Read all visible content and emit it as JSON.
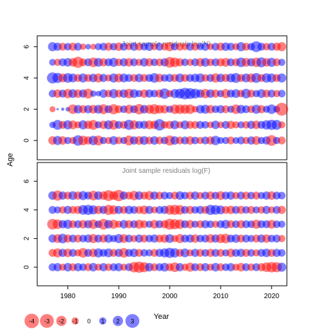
{
  "figure": {
    "ylabel": "Age",
    "xlabel": "Year",
    "xticks": [
      "1980",
      "1990",
      "2000",
      "2010",
      "2020"
    ],
    "colors": {
      "positive": "#0000FF",
      "negative": "#FF0000",
      "axis": "#000000",
      "title": "#808080"
    }
  },
  "legend": {
    "values": [
      -4,
      -3,
      -2,
      -1,
      0,
      1,
      2,
      3
    ],
    "labels": [
      "-4",
      "-3",
      "-2",
      "-1",
      "0",
      "1",
      "2",
      "3"
    ]
  },
  "chart_data": [
    {
      "type": "scatter",
      "title": "Joint sample residuals log(N)",
      "xlabel": "Year",
      "ylabel": "Age",
      "xlim": [
        1974,
        2023
      ],
      "ylim": [
        -1.3,
        7
      ],
      "yticks": [
        "0",
        "2",
        "4",
        "6"
      ],
      "years_first": 1977,
      "years_last": 2022,
      "ages": [
        0,
        1,
        2,
        3,
        4,
        5,
        6
      ],
      "residuals": [
        [
          -1.4,
          1.6,
          -1.4,
          1.0,
          -1.0,
          2.1,
          -1.8,
          -1.3,
          1.7,
          -1.9,
          1.0,
          -1.0,
          1.5,
          -1.1,
          1.0,
          -1.9,
          1.3,
          -1.5,
          1.5,
          -1.2,
          1.4,
          -1.2,
          1.1,
          -2.0,
          1.4,
          -1.2,
          1.2,
          -1.4,
          1.1,
          -1.0,
          1.2,
          -1.3,
          1.7,
          0.9,
          1.0,
          -1.2,
          0.9,
          1.2,
          -1.0,
          1.3,
          -1.5,
          1.0,
          1.3,
          -2.2,
          1.0,
          -1.2
        ],
        [
          0.8,
          1.9,
          -1.2,
          1.6,
          -1.5,
          -1.0,
          1.6,
          -1.4,
          -1.9,
          1.0,
          -1.4,
          1.6,
          -1.8,
          1.2,
          -1.2,
          2.0,
          -1.6,
          1.2,
          1.3,
          -1.5,
          -1.4,
          2.5,
          -1.1,
          -1.3,
          1.5,
          -1.0,
          1.5,
          -1.2,
          -1.2,
          1.2,
          1.1,
          -0.9,
          1.4,
          -0.9,
          1.2,
          -1.3,
          -1.0,
          1.0,
          -1.1,
          1.3,
          -1.4,
          1.2,
          1.7,
          2.0,
          1.9,
          -1.0
        ],
        [
          -0.7,
          0.1,
          0.2,
          0.4,
          -1.8,
          1.4,
          -1.3,
          1.3,
          -1.5,
          1.5,
          -1.9,
          1.2,
          -2.0,
          -1.2,
          1.1,
          -1.6,
          1.2,
          -2.1,
          1.4,
          -1.6,
          -2.0,
          -1.5,
          -1.4,
          1.0,
          -1.8,
          -1.8,
          -1.7,
          -1.8,
          -0.9,
          1.4,
          1.6,
          -1.4,
          1.1,
          1.3,
          -1.2,
          1.0,
          -1.8,
          1.5,
          1.2,
          -1.1,
          1.6,
          -1.3,
          1.0,
          1.8,
          0.9,
          -3.2
        ],
        [
          1.1,
          -1.4,
          1.2,
          -1.7,
          1.5,
          -1.4,
          1.3,
          -1.9,
          0.8,
          0.6,
          1.4,
          -1.1,
          1.6,
          -1.2,
          1.4,
          -1.8,
          1.5,
          1.0,
          -1.4,
          1.3,
          1.1,
          -1.3,
          2.1,
          -1.0,
          1.6,
          1.9,
          2.6,
          2.3,
          1.9,
          1.4,
          -1.7,
          1.4,
          -1.3,
          1.0,
          -1.6,
          1.2,
          1.5,
          -1.1,
          1.8,
          -1.2,
          1.0,
          1.5,
          -1.2,
          1.2,
          -1.0,
          1.1
        ],
        [
          2.4,
          2.0,
          -1.5,
          1.8,
          1.5,
          -1.2,
          1.6,
          -1.2,
          1.4,
          -1.6,
          1.3,
          -1.0,
          1.6,
          -1.5,
          1.5,
          1.2,
          -1.2,
          1.4,
          -1.2,
          1.2,
          1.8,
          -1.4,
          1.1,
          1.3,
          -1.2,
          1.5,
          -1.2,
          1.2,
          1.4,
          1.6,
          -1.1,
          1.2,
          -1.7,
          1.4,
          -1.3,
          1.5,
          1.9,
          -1.2,
          1.5,
          -1.6,
          1.9,
          -1.2,
          1.7,
          1.6,
          -1.2,
          1.6
        ],
        [
          0.9,
          -1.0,
          1.2,
          1.4,
          -1.4,
          -2.4,
          -1.2,
          1.2,
          -1.8,
          1.5,
          -1.3,
          1.2,
          1.6,
          -1.1,
          1.3,
          -1.4,
          1.2,
          -1.0,
          1.4,
          -1.3,
          1.1,
          -1.2,
          1.3,
          -2.2,
          -1.8,
          -1.3,
          1.1,
          -1.0,
          1.2,
          -1.4,
          1.5,
          -1.1,
          1.2,
          -1.3,
          -1.5,
          1.2,
          -1.2,
          1.8,
          -1.5,
          1.3,
          -1.7,
          1.9,
          -1.4,
          1.6,
          -1.2,
          1.0
        ],
        [
          1.6,
          1.3,
          -1.2,
          1.1,
          -1.3,
          1.2,
          -0.8,
          0.6,
          -0.7,
          1.0,
          1.2,
          -1.3,
          1.1,
          -1.4,
          1.2,
          -1.0,
          1.3,
          -1.2,
          1.1,
          1.4,
          -1.0,
          1.2,
          -1.1,
          -1.6,
          1.1,
          -1.2,
          -1.0,
          1.2,
          -1.2,
          1.0,
          1.3,
          -0.9,
          1.2,
          -1.3,
          1.4,
          1.2,
          -1.0,
          1.6,
          -1.2,
          1.1,
          2.3,
          1.2,
          -1.1,
          1.2,
          -1.3,
          -1.6
        ]
      ]
    },
    {
      "type": "scatter",
      "title": "Joint sample residuals log(F)",
      "xlabel": "Year",
      "ylabel": "Age",
      "xlim": [
        1974,
        2023
      ],
      "ylim": [
        -1.3,
        7
      ],
      "yticks": [
        "0",
        "2",
        "4",
        "6"
      ],
      "years_first": 1977,
      "years_last": 2022,
      "ages": [
        0,
        1,
        2,
        3,
        4,
        5
      ],
      "residuals": [
        [
          1.2,
          1.3,
          -1.0,
          1.4,
          -1.2,
          1.3,
          1.1,
          -1.2,
          1.4,
          -1.0,
          1.3,
          -1.1,
          1.2,
          1.3,
          -1.0,
          1.2,
          -2.1,
          -2.4,
          -2.0,
          1.4,
          -1.2,
          1.2,
          1.5,
          -1.2,
          -1.8,
          1.3,
          -1.0,
          -1.6,
          1.2,
          -1.2,
          1.3,
          -1.0,
          1.4,
          -1.2,
          1.1,
          1.3,
          -1.0,
          -1.4,
          1.2,
          -1.1,
          1.2,
          -1.3,
          -1.8,
          -2.1,
          -2.0,
          1.6
        ],
        [
          -1.2,
          -1.6,
          1.3,
          -1.4,
          1.2,
          -1.0,
          -1.8,
          1.2,
          -1.4,
          1.6,
          1.2,
          1.5,
          -1.2,
          1.3,
          -1.8,
          1.2,
          1.4,
          -1.2,
          1.1,
          1.0,
          -1.2,
          1.3,
          1.6,
          2.0,
          1.7,
          -1.2,
          1.5,
          -1.0,
          1.3,
          -1.2,
          1.1,
          -1.3,
          1.2,
          -1.2,
          1.0,
          -1.4,
          1.2,
          1.3,
          -1.2,
          1.1,
          -1.0,
          1.2,
          1.4,
          -1.2,
          1.3,
          1.1
        ],
        [
          1.3,
          -1.5,
          1.8,
          -1.3,
          1.2,
          -1.2,
          1.1,
          1.3,
          -1.6,
          1.2,
          -1.3,
          1.4,
          1.0,
          1.6,
          -1.5,
          1.2,
          -1.0,
          1.3,
          -1.2,
          1.1,
          1.3,
          -1.2,
          -1.4,
          1.5,
          -1.0,
          -1.6,
          1.2,
          1.3,
          -1.4,
          1.1,
          1.2,
          -1.5,
          1.3,
          -1.6,
          -1.8,
          1.2,
          1.4,
          -1.2,
          1.2,
          1.0,
          -1.2,
          1.3,
          -1.4,
          1.1,
          1.2,
          -1.0
        ],
        [
          -2.2,
          -1.8,
          1.3,
          1.6,
          -1.2,
          1.2,
          -1.4,
          1.3,
          -1.8,
          1.1,
          -2.2,
          1.4,
          -1.6,
          -1.0,
          1.4,
          -1.3,
          1.2,
          -1.6,
          -1.2,
          1.0,
          -1.5,
          1.2,
          -1.3,
          -2.3,
          -2.0,
          -1.8,
          1.2,
          -1.4,
          1.0,
          -1.2,
          1.3,
          1.1,
          -1.0,
          1.2,
          1.5,
          -1.2,
          1.1,
          -1.3,
          1.2,
          1.1,
          -1.6,
          1.2,
          1.2,
          -1.5,
          1.1,
          1.0
        ],
        [
          1.2,
          1.0,
          -1.1,
          1.3,
          -1.2,
          -1.3,
          1.8,
          2.0,
          1.6,
          -1.4,
          1.3,
          -2.0,
          -1.6,
          1.3,
          -1.2,
          1.4,
          1.2,
          -1.2,
          -1.5,
          1.3,
          -1.0,
          1.2,
          1.3,
          -1.8,
          -2.0,
          -1.8,
          1.2,
          -1.3,
          1.1,
          1.3,
          -1.2,
          2.0,
          1.8,
          1.5,
          -1.2,
          -1.4,
          1.2,
          -1.3,
          1.1,
          -1.2,
          1.0,
          -1.1,
          1.3,
          -1.0,
          1.2,
          -1.3
        ],
        [
          1.4,
          -2.0,
          1.3,
          -1.2,
          1.5,
          -1.3,
          1.6,
          1.2,
          -1.8,
          1.4,
          -1.4,
          -2.3,
          -1.5,
          -2.5,
          1.3,
          -1.2,
          -1.7,
          1.4,
          -1.2,
          -1.6,
          1.3,
          -1.2,
          1.2,
          1.0,
          -1.2,
          1.4,
          1.1,
          -1.2,
          1.3,
          -1.0,
          1.2,
          -1.3,
          1.1,
          -1.5,
          1.2,
          1.3,
          -1.0,
          1.2,
          -1.2,
          1.1,
          -1.2,
          1.0,
          1.3,
          -1.4,
          1.2,
          1.1
        ]
      ]
    }
  ]
}
